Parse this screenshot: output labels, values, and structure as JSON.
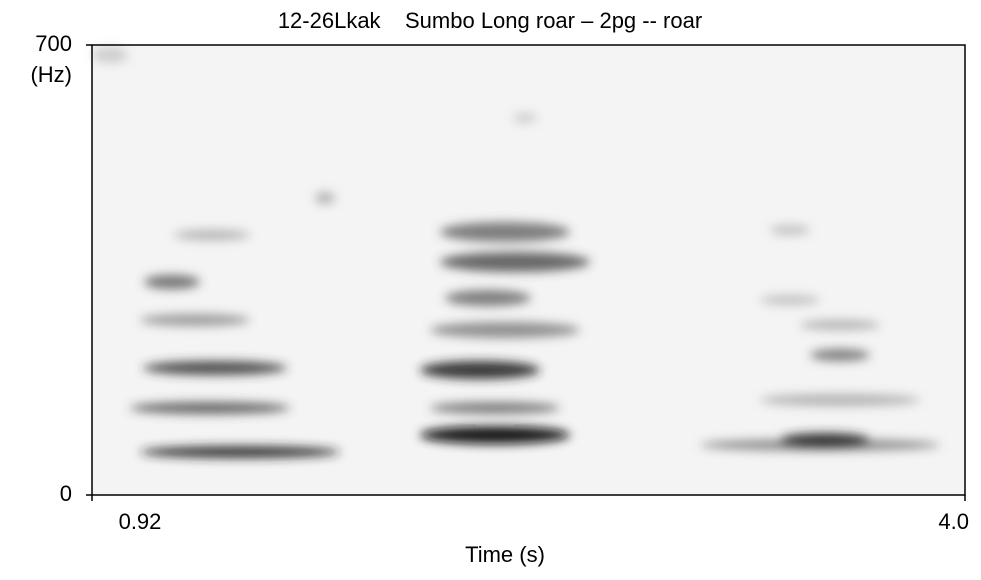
{
  "chart_data": {
    "type": "spectrogram",
    "title": "12-26Lkak    Sumbo Long roar – 2pg -- roar",
    "x_label": "Time (s)",
    "y_label": "(Hz)",
    "xlim": [
      0.92,
      4.0
    ],
    "xticks": [
      0.92,
      {
        "value": 4.0,
        "label": "4.0"
      }
    ],
    "ylim": [
      0,
      700
    ],
    "yticks": [
      0,
      700
    ]
  }
}
